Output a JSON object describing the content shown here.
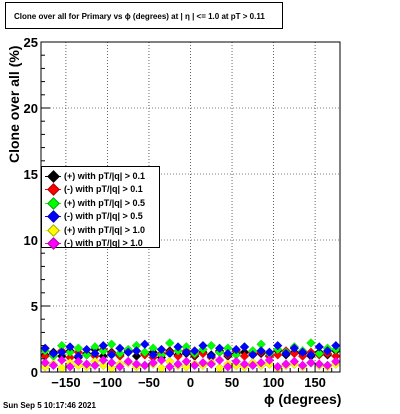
{
  "title": "Clone  over all for Primary vs ϕ (degrees) at |  η | <= 1.0 at pT > 0.11",
  "footer": "Sun Sep  5 10:17:46 2021",
  "chart_data": {
    "type": "scatter",
    "xlabel": "ϕ (degrees)",
    "ylabel": "Clone  over all (%)",
    "xlim": [
      -180,
      180
    ],
    "ylim": [
      0,
      25
    ],
    "x_ticks": [
      -150,
      -100,
      -50,
      0,
      50,
      100,
      150
    ],
    "x_tick_labels": [
      "−150",
      "−100",
      "−50",
      "0",
      "50",
      "100",
      "150"
    ],
    "y_ticks": [
      0,
      5,
      10,
      15,
      20,
      25
    ],
    "y_tick_labels": [
      "0",
      "5",
      "10",
      "15",
      "20",
      "25"
    ],
    "grid": true,
    "legend_position": "middle-left",
    "series": [
      {
        "name": "(+) with pT/|q| > 0.1",
        "color": "#000000",
        "values": [
          1.3,
          1.5,
          1.2,
          1.6,
          1.1,
          1.4,
          1.7,
          1.2,
          1.5,
          1.3,
          1.6,
          1.2,
          1.4,
          1.5,
          1.1,
          1.6,
          1.3,
          1.4,
          1.2,
          1.5,
          1.3,
          1.6,
          1.2,
          1.4,
          1.5,
          1.3,
          1.4,
          1.2,
          1.6,
          1.3,
          1.5,
          1.4,
          1.2,
          1.5,
          1.3,
          1.6
        ]
      },
      {
        "name": "(-) with pT/|q| > 0.1",
        "color": "#ff0000",
        "values": [
          1.2,
          1.4,
          1.6,
          1.1,
          1.5,
          1.3,
          1.2,
          1.7,
          1.4,
          1.2,
          1.5,
          1.6,
          1.3,
          1.1,
          1.4,
          1.5,
          1.2,
          1.6,
          1.3,
          1.4,
          1.1,
          1.5,
          1.3,
          1.6,
          1.2,
          1.4,
          1.5,
          1.2,
          1.3,
          1.6,
          1.4,
          1.2,
          1.5,
          1.3,
          1.4,
          1.2
        ]
      },
      {
        "name": "(+) with pT/|q| > 0.5",
        "color": "#00ff00",
        "values": [
          1.6,
          1.2,
          2.0,
          1.5,
          1.8,
          1.3,
          1.9,
          1.6,
          2.1,
          1.4,
          1.7,
          2.0,
          1.5,
          1.8,
          1.3,
          2.2,
          1.6,
          1.9,
          1.4,
          1.7,
          2.0,
          1.5,
          1.8,
          1.3,
          1.9,
          1.6,
          2.1,
          1.4,
          1.7,
          1.5,
          1.9,
          1.6,
          2.2,
          1.4,
          1.8,
          1.7
        ]
      },
      {
        "name": "(-) with pT/|q| > 0.5",
        "color": "#0000ff",
        "values": [
          1.8,
          1.4,
          1.5,
          1.9,
          1.2,
          1.7,
          1.4,
          2.0,
          1.3,
          1.8,
          1.5,
          1.6,
          2.1,
          1.3,
          1.7,
          1.4,
          1.9,
          1.5,
          1.6,
          2.0,
          1.2,
          1.8,
          1.4,
          1.7,
          1.9,
          1.3,
          1.6,
          1.5,
          2.0,
          1.4,
          1.8,
          1.5,
          1.3,
          1.9,
          1.6,
          2.0
        ]
      },
      {
        "name": "(+) with pT/|q| > 1.0",
        "color": "#ffff00",
        "values": [
          0.4,
          0.6,
          0.3,
          0.7,
          0.5,
          0.4,
          0.8,
          0.5,
          0.3,
          0.6,
          0.7,
          0.4,
          0.5,
          0.6,
          0.3,
          0.8,
          0.5,
          0.4,
          0.6,
          0.5,
          0.7,
          0.3,
          0.6,
          0.5,
          0.4,
          0.7,
          0.5,
          0.6,
          0.3,
          0.5,
          0.6,
          0.4,
          0.7,
          0.5,
          0.4,
          0.6
        ]
      },
      {
        "name": "(-) with pT/|q| > 1.0",
        "color": "#ff00ff",
        "values": [
          0.7,
          0.5,
          0.9,
          0.4,
          0.8,
          0.6,
          0.5,
          0.9,
          0.7,
          0.4,
          0.8,
          0.6,
          0.5,
          0.7,
          0.9,
          0.4,
          0.6,
          0.8,
          0.5,
          0.7,
          0.6,
          0.9,
          0.4,
          0.8,
          0.6,
          0.5,
          0.7,
          0.9,
          0.4,
          0.6,
          0.8,
          0.5,
          0.7,
          0.6,
          0.5,
          0.8
        ]
      }
    ]
  }
}
